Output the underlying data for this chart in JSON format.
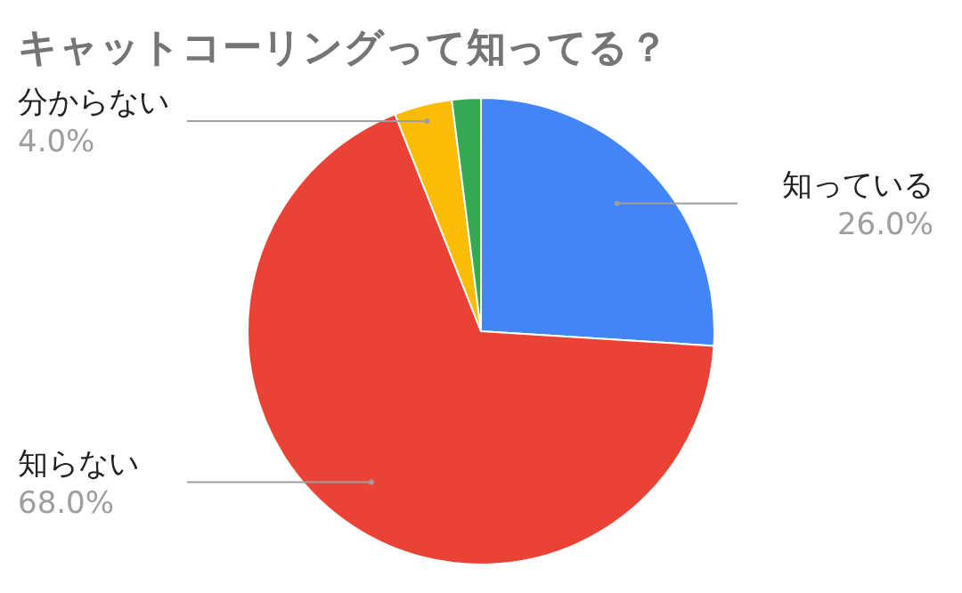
{
  "chart_data": {
    "type": "pie",
    "title": "キャットコーリングって知ってる？",
    "categories": [
      "知っている",
      "知らない",
      "分からない",
      null
    ],
    "values": [
      26,
      68,
      4,
      2
    ],
    "colors": [
      "#4285f4",
      "#ea4335",
      "#fbbc04",
      "#34a853"
    ],
    "value_labels": [
      "26.0%",
      "68.0%",
      "4.0%",
      null
    ]
  }
}
